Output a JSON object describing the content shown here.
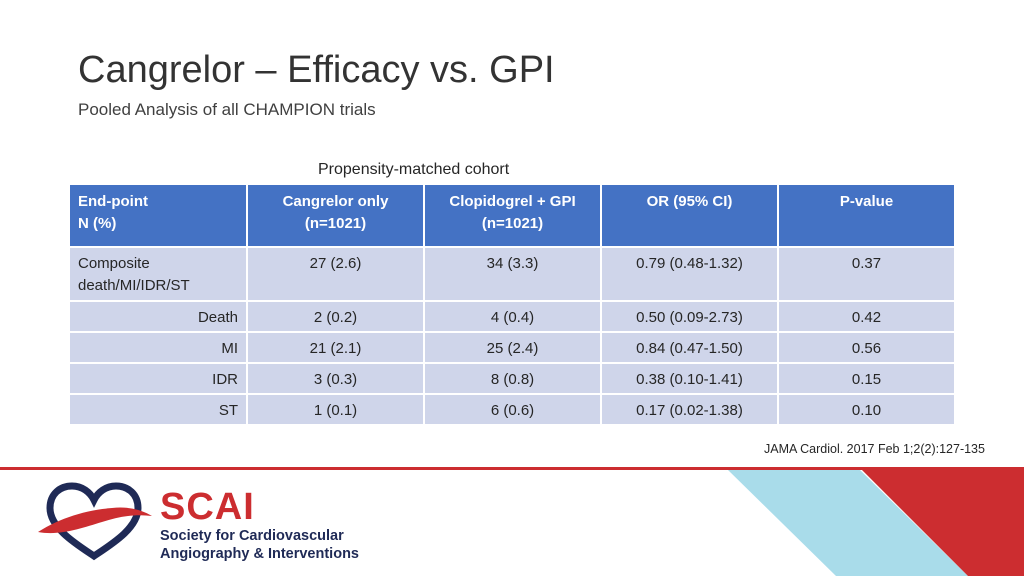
{
  "slide": {
    "title": "Cangrelor – Efficacy vs. GPI",
    "subtitle": "Pooled Analysis of all CHAMPION trials",
    "table_caption": "Propensity-matched cohort",
    "citation": "JAMA Cardiol. 2017 Feb 1;2(2):127-135"
  },
  "table": {
    "headers": [
      {
        "line1": "End-point",
        "line2": "N (%)"
      },
      {
        "line1": "Cangrelor only",
        "line2": "(n=1021)"
      },
      {
        "line1": "Clopidogrel + GPI",
        "line2": "(n=1021)"
      },
      {
        "line1": "OR (95% CI)",
        "line2": ""
      },
      {
        "line1": "P-value",
        "line2": ""
      }
    ],
    "rows": [
      {
        "endpoint_line1": "Composite",
        "endpoint_line2": "death/MI/IDR/ST",
        "cangrelor": "27 (2.6)",
        "clopidogrel_gpi": "34 (3.3)",
        "or_ci": "0.79 (0.48-1.32)",
        "p_value": "0.37"
      },
      {
        "endpoint": "Death",
        "cangrelor": "2 (0.2)",
        "clopidogrel_gpi": "4 (0.4)",
        "or_ci": "0.50 (0.09-2.73)",
        "p_value": "0.42"
      },
      {
        "endpoint": "MI",
        "cangrelor": "21 (2.1)",
        "clopidogrel_gpi": "25 (2.4)",
        "or_ci": "0.84 (0.47-1.50)",
        "p_value": "0.56"
      },
      {
        "endpoint": "IDR",
        "cangrelor": "3 (0.3)",
        "clopidogrel_gpi": "8 (0.8)",
        "or_ci": "0.38 (0.10-1.41)",
        "p_value": "0.15"
      },
      {
        "endpoint": "ST",
        "cangrelor": "1 (0.1)",
        "clopidogrel_gpi": "6 (0.6)",
        "or_ci": "0.17 (0.02-1.38)",
        "p_value": "0.10"
      }
    ]
  },
  "logo": {
    "icon": "heart-swoosh-icon",
    "name": "SCAI",
    "line1": "Society for Cardiovascular",
    "line2": "Angiography & Interventions"
  },
  "colors": {
    "header_fill": "#4472c4",
    "row_fill": "#cfd5ea",
    "accent_red": "#cc2d30",
    "accent_light_blue": "#a9dcea",
    "brand_navy": "#1f2a56"
  }
}
